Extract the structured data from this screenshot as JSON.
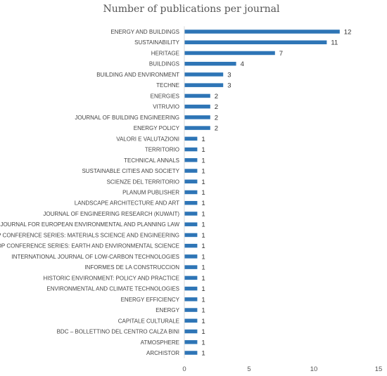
{
  "chart_data": {
    "type": "bar",
    "orientation": "horizontal",
    "title": "Number of publications per journal",
    "xlabel": "",
    "ylabel": "",
    "xlim": [
      0,
      15
    ],
    "xticks": [
      0,
      5,
      10,
      15
    ],
    "grid": false,
    "bar_color": "#2e75b6",
    "categories": [
      "ENERGY AND BUILDINGS",
      "SUSTAINABILITY",
      "HERITAGE",
      "BUILDINGS",
      "BUILDING AND ENVIRONMENT",
      "TECHNE",
      "ENERGIES",
      "VITRUVIO",
      "JOURNAL OF BUILDING ENGINEERING",
      "ENERGY POLICY",
      "VALORI E VALUTAZIONI",
      "TERRITORIO",
      "TECHNICAL ANNALS",
      "SUSTAINABLE CITIES AND SOCIETY",
      "SCIENZE DEL TERRITORIO",
      "PLANUM PUBLISHER",
      "LANDSCAPE ARCHITECTURE AND ART",
      "JOURNAL OF ENGINEERING RESEARCH (KUWAIT)",
      "JOURNAL FOR EUROPEAN ENVIRONMENTAL AND PLANNING LAW",
      "IOP CONFERENCE SERIES: MATERIALS SCIENCE AND ENGINEERING",
      "IOP CONFERENCE SERIES: EARTH AND ENVIRONMENTAL SCIENCE",
      "INTERNATIONAL JOURNAL OF LOW-CARBON TECHNOLOGIES",
      "INFORMES DE LA CONSTRUCCION",
      "HISTORIC ENVIRONMENT: POLICY AND PRACTICE",
      "ENVIRONMENTAL AND CLIMATE TECHNOLOGIES",
      "ENERGY EFFICIENCY",
      "ENERGY",
      "CAPITALE CULTURALE",
      "BDC – BOLLETTINO DEL CENTRO CALZA BINI",
      "ATMOSPHERE",
      "ARCHISTOR"
    ],
    "values": [
      12,
      11,
      7,
      4,
      3,
      3,
      2,
      2,
      2,
      2,
      1,
      1,
      1,
      1,
      1,
      1,
      1,
      1,
      1,
      1,
      1,
      1,
      1,
      1,
      1,
      1,
      1,
      1,
      1,
      1,
      1
    ]
  }
}
